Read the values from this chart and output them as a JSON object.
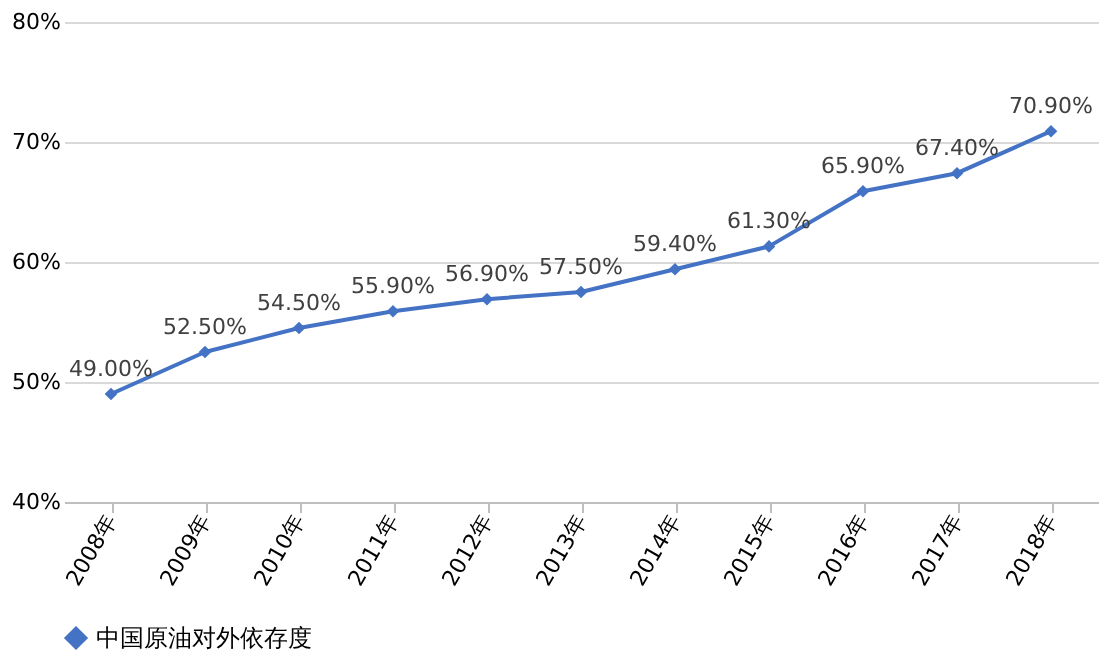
{
  "chart_data": {
    "type": "line",
    "categories": [
      "2008年",
      "2009年",
      "2010年",
      "2011年",
      "2012年",
      "2013年",
      "2014年",
      "2015年",
      "2016年",
      "2017年",
      "2018年"
    ],
    "series": [
      {
        "name": "中国原油对外依存度",
        "color": "#4472c4",
        "values": [
          49.0,
          52.5,
          54.5,
          55.9,
          56.9,
          57.5,
          59.4,
          61.3,
          65.9,
          67.4,
          70.9
        ],
        "value_labels": [
          "49.00%",
          "52.50%",
          "54.50%",
          "55.90%",
          "56.90%",
          "57.50%",
          "59.40%",
          "61.30%",
          "65.90%",
          "67.40%",
          "70.90%"
        ]
      }
    ],
    "ylim": [
      40,
      80
    ],
    "yticks": [
      {
        "value": 40,
        "label": "40%"
      },
      {
        "value": 50,
        "label": "50%"
      },
      {
        "value": 60,
        "label": "60%"
      },
      {
        "value": 70,
        "label": "70%"
      },
      {
        "value": 80,
        "label": "80%"
      }
    ],
    "grid": "y",
    "legend": "bottom",
    "marker": "diamond",
    "line_style": "solid"
  }
}
